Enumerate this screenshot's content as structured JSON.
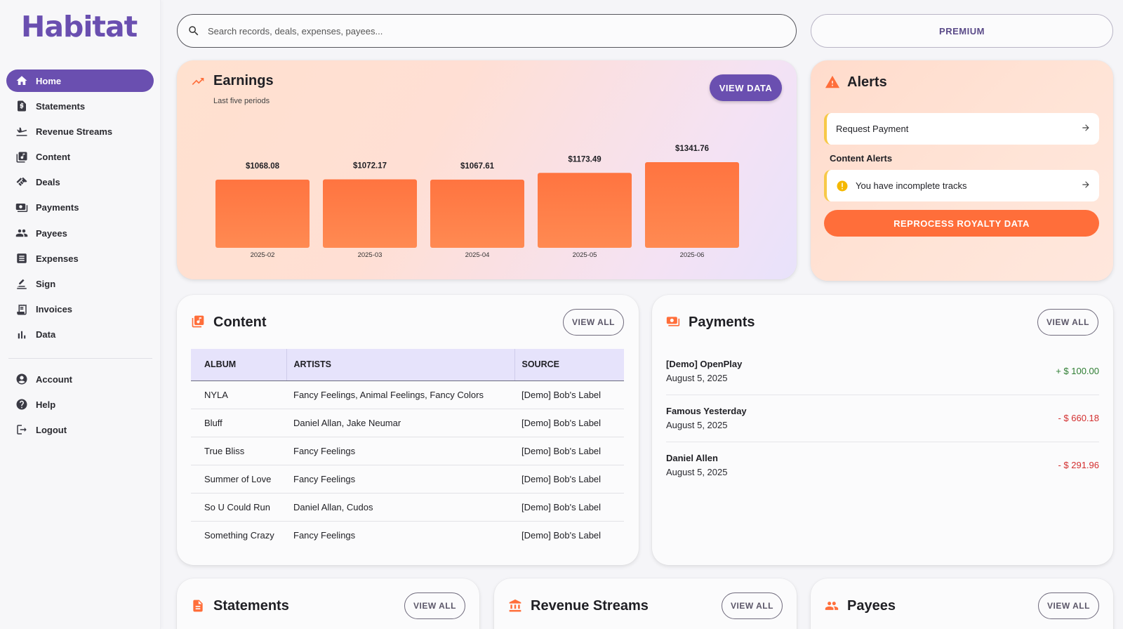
{
  "app": {
    "logo": "Habitat"
  },
  "sidebar": {
    "items": [
      {
        "label": "Home",
        "icon": "home-icon",
        "active": true
      },
      {
        "label": "Statements",
        "icon": "statements-icon"
      },
      {
        "label": "Revenue Streams",
        "icon": "revenue-streams-icon"
      },
      {
        "label": "Content",
        "icon": "content-icon"
      },
      {
        "label": "Deals",
        "icon": "deals-icon"
      },
      {
        "label": "Payments",
        "icon": "payments-icon"
      },
      {
        "label": "Payees",
        "icon": "payees-icon"
      },
      {
        "label": "Expenses",
        "icon": "expenses-icon"
      },
      {
        "label": "Sign",
        "icon": "sign-icon"
      },
      {
        "label": "Invoices",
        "icon": "invoices-icon"
      },
      {
        "label": "Data",
        "icon": "data-icon"
      }
    ],
    "secondary": [
      {
        "label": "Account",
        "icon": "account-icon"
      },
      {
        "label": "Help",
        "icon": "help-icon"
      },
      {
        "label": "Logout",
        "icon": "logout-icon"
      }
    ]
  },
  "search": {
    "placeholder": "Search records, deals, expenses, payees..."
  },
  "premium": {
    "label": "PREMIUM"
  },
  "earnings": {
    "title": "Earnings",
    "subtitle": "Last five periods",
    "view_data_label": "VIEW DATA"
  },
  "chart_data": {
    "type": "bar",
    "title": "Earnings",
    "subtitle": "Last five periods",
    "categories": [
      "2025-02",
      "2025-03",
      "2025-04",
      "2025-05",
      "2025-06"
    ],
    "values": [
      1068.08,
      1072.17,
      1067.61,
      1173.49,
      1341.76
    ],
    "value_labels": [
      "$1068.08",
      "$1072.17",
      "$1067.61",
      "$1173.49",
      "$1341.76"
    ],
    "bar_color": "#ff7440",
    "grid": false,
    "legend": "none"
  },
  "alerts": {
    "title": "Alerts",
    "request_payment": "Request Payment",
    "content_alerts_label": "Content Alerts",
    "incomplete_tracks": "You have incomplete tracks",
    "reprocess_label": "REPROCESS ROYALTY DATA"
  },
  "content": {
    "title": "Content",
    "view_all": "VIEW ALL",
    "columns": [
      "ALBUM",
      "ARTISTS",
      "SOURCE"
    ],
    "rows": [
      [
        "NYLA",
        "Fancy Feelings, Animal Feelings, Fancy Colors",
        "[Demo] Bob's Label"
      ],
      [
        "Bluff",
        "Daniel Allan, Jake Neumar",
        "[Demo] Bob's Label"
      ],
      [
        "True Bliss",
        "Fancy Feelings",
        "[Demo] Bob's Label"
      ],
      [
        "Summer of Love",
        "Fancy Feelings",
        "[Demo] Bob's Label"
      ],
      [
        "So U Could Run",
        "Daniel Allan, Cudos",
        "[Demo] Bob's Label"
      ],
      [
        "Something Crazy",
        "Fancy Feelings",
        "[Demo] Bob's Label"
      ]
    ]
  },
  "payments": {
    "title": "Payments",
    "view_all": "VIEW ALL",
    "rows": [
      {
        "name": "[Demo] OpenPlay",
        "date": "August 5, 2025",
        "amount": "+ $ 100.00",
        "color": "#2e7d32"
      },
      {
        "name": "Famous Yesterday",
        "date": "August 5, 2025",
        "amount": "- $ 660.18",
        "color": "#d32f2f"
      },
      {
        "name": "Daniel Allen",
        "date": "August 5, 2025",
        "amount": "- $ 291.96",
        "color": "#d32f2f"
      }
    ]
  },
  "bottom": {
    "statements": {
      "title": "Statements",
      "view_all": "VIEW ALL"
    },
    "revenue_streams": {
      "title": "Revenue Streams",
      "view_all": "VIEW ALL"
    },
    "payees": {
      "title": "Payees",
      "view_all": "VIEW ALL"
    }
  },
  "colors": {
    "accent": "#6a4fb0",
    "orange": "#ff6e3a",
    "warning": "#f7c948"
  }
}
